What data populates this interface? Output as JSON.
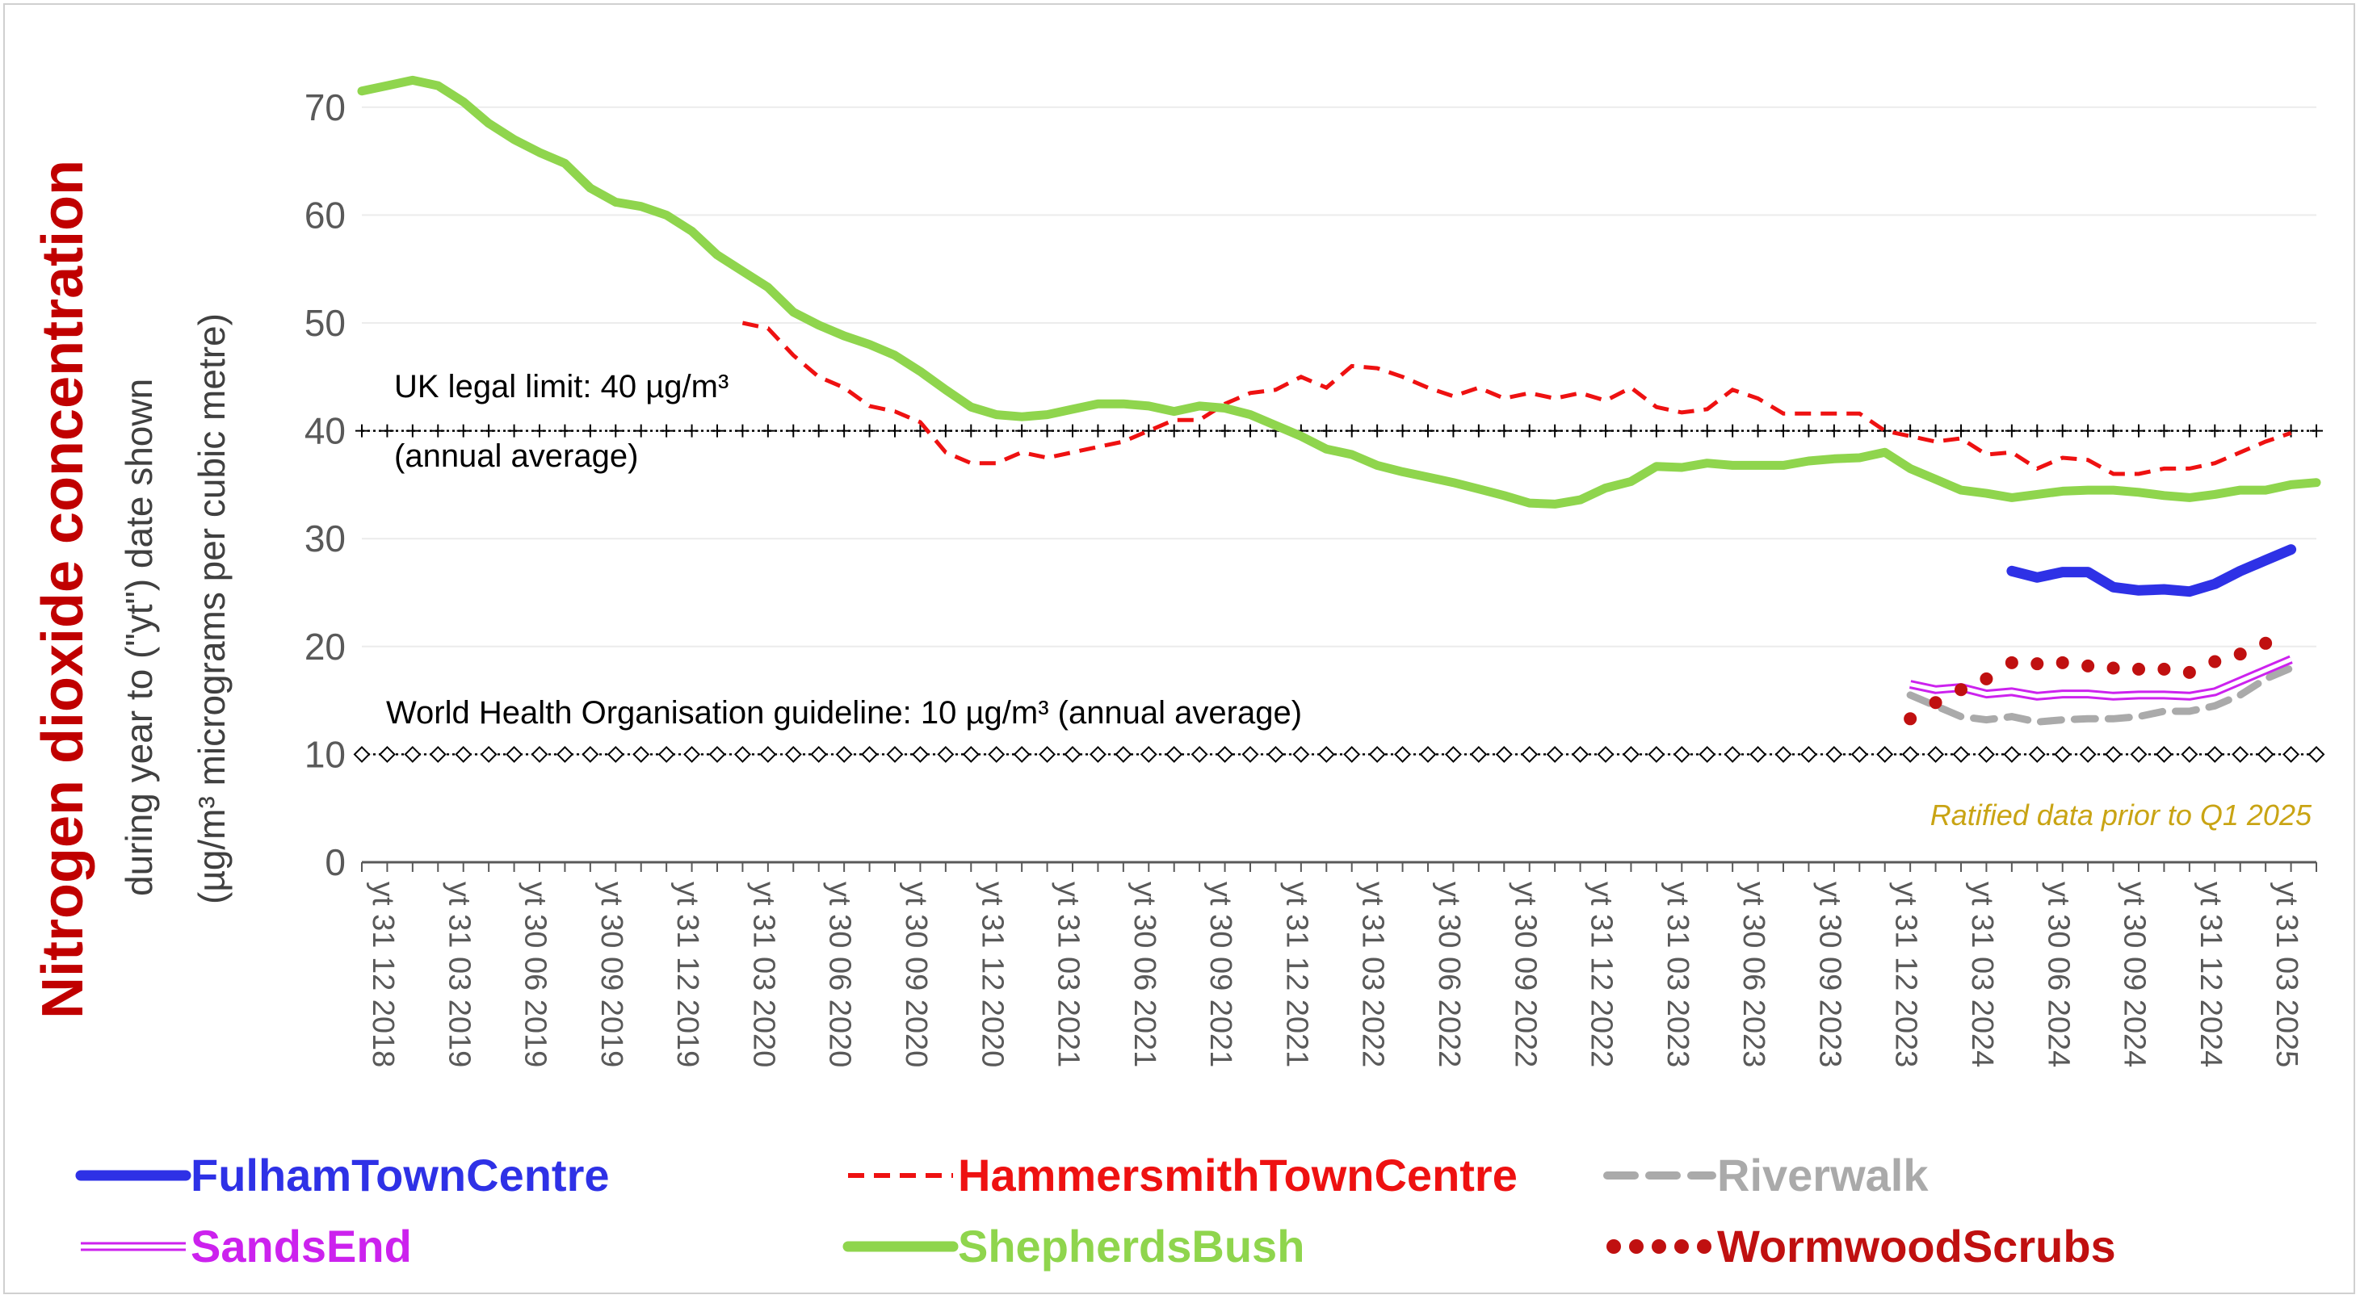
{
  "chart_data": {
    "type": "line",
    "title": "Nitrogen dioxide concentration",
    "ylabel_line1": "during year to (\"yt\") date shown",
    "ylabel_line2": "(µg/m³ micrograms per cubic metre)",
    "ylim": [
      0,
      75
    ],
    "yticks": [
      0,
      10,
      20,
      30,
      40,
      50,
      60,
      70
    ],
    "gridlines": true,
    "legend_position": "bottom",
    "x_dates": [
      "2018-12",
      "2019-01",
      "2019-02",
      "2019-03",
      "2019-04",
      "2019-05",
      "2019-06",
      "2019-07",
      "2019-08",
      "2019-09",
      "2019-10",
      "2019-11",
      "2019-12",
      "2020-01",
      "2020-02",
      "2020-03",
      "2020-04",
      "2020-05",
      "2020-06",
      "2020-07",
      "2020-08",
      "2020-09",
      "2020-10",
      "2020-11",
      "2020-12",
      "2021-01",
      "2021-02",
      "2021-03",
      "2021-04",
      "2021-05",
      "2021-06",
      "2021-07",
      "2021-08",
      "2021-09",
      "2021-10",
      "2021-11",
      "2021-12",
      "2022-01",
      "2022-02",
      "2022-03",
      "2022-04",
      "2022-05",
      "2022-06",
      "2022-07",
      "2022-08",
      "2022-09",
      "2022-10",
      "2022-11",
      "2022-12",
      "2023-01",
      "2023-02",
      "2023-03",
      "2023-04",
      "2023-05",
      "2023-06",
      "2023-07",
      "2023-08",
      "2023-09",
      "2023-10",
      "2023-11",
      "2023-12",
      "2024-01",
      "2024-02",
      "2024-03",
      "2024-04",
      "2024-05",
      "2024-06",
      "2024-07",
      "2024-08",
      "2024-09",
      "2024-10",
      "2024-11",
      "2024-12",
      "2025-01",
      "2025-02",
      "2025-03",
      "2025-04",
      "2025-05"
    ],
    "x_tick_labels": [
      "yt 31 12 2018",
      "yt 31 03 2019",
      "yt 30 06 2019",
      "yt 30 09 2019",
      "yt 31 12 2019",
      "yt 31 03 2020",
      "yt 30 06 2020",
      "yt 30 09 2020",
      "yt 31 12 2020",
      "yt 31 03 2021",
      "yt 30 06 2021",
      "yt 30 09 2021",
      "yt 31 12 2021",
      "yt 31 03 2022",
      "yt 30 06 2022",
      "yt 30 09 2022",
      "yt 31 12 2022",
      "yt 31 03 2023",
      "yt 30 06 2023",
      "yt 30 09 2023",
      "yt 31 12 2023",
      "yt 31 03 2024",
      "yt 30 06 2024",
      "yt 30 09 2024",
      "yt 31 12 2024",
      "yt 31 03 2025"
    ],
    "series": [
      {
        "name": "FulhamTownCentre",
        "color": "#2e31e6",
        "style": "solid-thick",
        "values": [
          null,
          null,
          null,
          null,
          null,
          null,
          null,
          null,
          null,
          null,
          null,
          null,
          null,
          null,
          null,
          null,
          null,
          null,
          null,
          null,
          null,
          null,
          null,
          null,
          null,
          null,
          null,
          null,
          null,
          null,
          null,
          null,
          null,
          null,
          null,
          null,
          null,
          null,
          null,
          null,
          null,
          null,
          null,
          null,
          null,
          null,
          null,
          null,
          null,
          null,
          null,
          null,
          null,
          null,
          null,
          null,
          null,
          null,
          null,
          null,
          null,
          null,
          null,
          null,
          null,
          27.0,
          26.4,
          26.9,
          26.9,
          25.5,
          25.2,
          25.3,
          25.1,
          25.8,
          27.0,
          28.0,
          29.0,
          null
        ]
      },
      {
        "name": "HammersmithTownCentre",
        "color": "#ee1111",
        "style": "dashed",
        "values": [
          null,
          null,
          null,
          null,
          null,
          null,
          null,
          null,
          null,
          null,
          null,
          null,
          null,
          null,
          null,
          50.0,
          49.5,
          47.0,
          45.0,
          44.0,
          42.3,
          41.8,
          40.8,
          38.0,
          37.0,
          37.0,
          38.0,
          37.5,
          38.0,
          38.5,
          39.0,
          40.0,
          41.0,
          41.0,
          42.5,
          43.5,
          43.8,
          45.0,
          44.0,
          46.0,
          45.8,
          45.0,
          44.0,
          43.2,
          44.0,
          43.0,
          43.5,
          43.0,
          43.5,
          42.8,
          44.0,
          42.2,
          41.7,
          42.0,
          43.8,
          43.0,
          41.6,
          41.6,
          41.6,
          41.6,
          40.0,
          39.5,
          39.0,
          39.3,
          37.8,
          38.0,
          36.5,
          37.5,
          37.3,
          36.0,
          36.0,
          36.5,
          36.5,
          37.0,
          38.0,
          39.0,
          39.8,
          null
        ]
      },
      {
        "name": "Riverwalk",
        "color": "#aaaaaa",
        "style": "dashed-thick",
        "values": [
          null,
          null,
          null,
          null,
          null,
          null,
          null,
          null,
          null,
          null,
          null,
          null,
          null,
          null,
          null,
          null,
          null,
          null,
          null,
          null,
          null,
          null,
          null,
          null,
          null,
          null,
          null,
          null,
          null,
          null,
          null,
          null,
          null,
          null,
          null,
          null,
          null,
          null,
          null,
          null,
          null,
          null,
          null,
          null,
          null,
          null,
          null,
          null,
          null,
          null,
          null,
          null,
          null,
          null,
          null,
          null,
          null,
          null,
          null,
          null,
          null,
          15.5,
          14.5,
          13.5,
          13.2,
          13.5,
          13.0,
          13.2,
          13.3,
          13.3,
          13.5,
          14.0,
          14.0,
          14.5,
          15.5,
          17.0,
          18.0,
          null
        ]
      },
      {
        "name": "SandsEnd",
        "color": "#cc22ee",
        "style": "double",
        "values": [
          null,
          null,
          null,
          null,
          null,
          null,
          null,
          null,
          null,
          null,
          null,
          null,
          null,
          null,
          null,
          null,
          null,
          null,
          null,
          null,
          null,
          null,
          null,
          null,
          null,
          null,
          null,
          null,
          null,
          null,
          null,
          null,
          null,
          null,
          null,
          null,
          null,
          null,
          null,
          null,
          null,
          null,
          null,
          null,
          null,
          null,
          null,
          null,
          null,
          null,
          null,
          null,
          null,
          null,
          null,
          null,
          null,
          null,
          null,
          null,
          null,
          16.5,
          16.0,
          16.2,
          15.6,
          15.8,
          15.4,
          15.6,
          15.6,
          15.4,
          15.5,
          15.5,
          15.4,
          15.8,
          16.8,
          17.8,
          18.8,
          null
        ]
      },
      {
        "name": "ShepherdsBush",
        "color": "#8fd54d",
        "style": "solid-thick",
        "values": [
          71.5,
          72.0,
          72.5,
          72.0,
          70.5,
          68.5,
          67.0,
          65.8,
          64.8,
          62.5,
          61.2,
          60.8,
          60.0,
          58.5,
          56.3,
          54.8,
          53.3,
          51.0,
          49.8,
          48.8,
          48.0,
          47.0,
          45.5,
          43.8,
          42.2,
          41.5,
          41.3,
          41.5,
          42.0,
          42.5,
          42.5,
          42.3,
          41.8,
          42.3,
          42.1,
          41.5,
          40.5,
          39.5,
          38.3,
          37.8,
          36.8,
          36.2,
          35.7,
          35.2,
          34.6,
          34.0,
          33.3,
          33.2,
          33.6,
          34.7,
          35.3,
          36.7,
          36.6,
          37.0,
          36.8,
          36.8,
          36.8,
          37.2,
          37.4,
          37.5,
          38.0,
          36.5,
          35.5,
          34.5,
          34.2,
          33.8,
          34.1,
          34.4,
          34.5,
          34.5,
          34.3,
          34.0,
          33.8,
          34.1,
          34.5,
          34.5,
          35.0,
          35.2
        ]
      },
      {
        "name": "WormwoodScrubs",
        "color": "#c01010",
        "style": "dotted",
        "values": [
          null,
          null,
          null,
          null,
          null,
          null,
          null,
          null,
          null,
          null,
          null,
          null,
          null,
          null,
          null,
          null,
          null,
          null,
          null,
          null,
          null,
          null,
          null,
          null,
          null,
          null,
          null,
          null,
          null,
          null,
          null,
          null,
          null,
          null,
          null,
          null,
          null,
          null,
          null,
          null,
          null,
          null,
          null,
          null,
          null,
          null,
          null,
          null,
          null,
          null,
          null,
          null,
          null,
          null,
          null,
          null,
          null,
          null,
          null,
          null,
          null,
          13.3,
          14.8,
          16.0,
          17.0,
          18.5,
          18.4,
          18.5,
          18.2,
          18.0,
          17.9,
          17.9,
          17.6,
          18.6,
          19.3,
          20.3,
          null,
          null
        ]
      }
    ],
    "reference_lines": [
      {
        "value": 40,
        "label": "UK legal limit: 40 µg/m³",
        "label2": "(annual average)",
        "marker": "plus"
      },
      {
        "value": 10,
        "label": "World Health Organisation guideline: 10 µg/m³ (annual average)",
        "marker": "diamond"
      }
    ],
    "note": "Ratified data prior to Q1 2025",
    "note_color": "#c9a414"
  }
}
